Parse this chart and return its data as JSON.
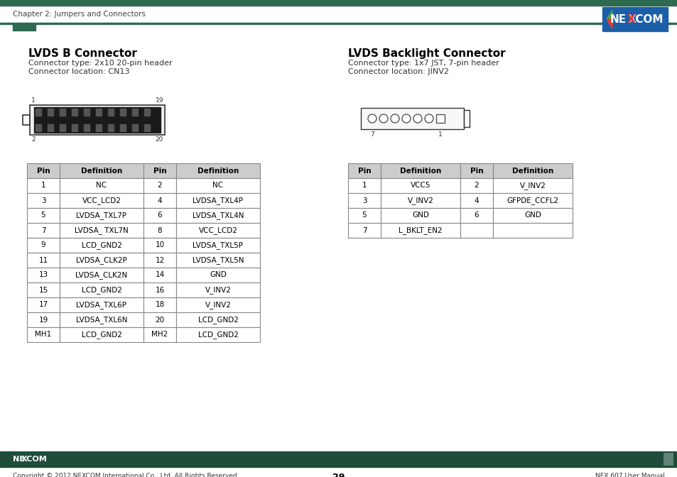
{
  "page_title": "Chapter 2: Jumpers and Connectors",
  "page_number": "29",
  "footer_left": "Copyright © 2012 NEXCOM International Co., Ltd. All Rights Reserved.",
  "footer_right": "NEX 607 User Manual",
  "bg_color": "#ffffff",
  "header_bar_color": "#2d6a4f",
  "footer_bar_color": "#1e4d3a",
  "lvds_b_title": "LVDS B Connector",
  "lvds_b_type": "Connector type: 2x10 20-pin header",
  "lvds_b_loc": "Connector location: CN13",
  "lvds_bl_title": "LVDS Backlight Connector",
  "lvds_bl_type": "Connector type: 1x7 JST, 7-pin header",
  "lvds_bl_loc": "Connector location: JINV2",
  "table1_headers": [
    "Pin",
    "Definition",
    "Pin",
    "Definition"
  ],
  "table1_rows": [
    [
      "1",
      "NC",
      "2",
      "NC"
    ],
    [
      "3",
      "VCC_LCD2",
      "4",
      "LVDSA_TXL4P"
    ],
    [
      "5",
      "LVDSA_TXL7P",
      "6",
      "LVDSA_TXL4N"
    ],
    [
      "7",
      "LVDSA_ TXL7N",
      "8",
      "VCC_LCD2"
    ],
    [
      "9",
      "LCD_GND2",
      "10",
      "LVDSA_TXL5P"
    ],
    [
      "11",
      "LVDSA_CLK2P",
      "12",
      "LVDSA_TXL5N"
    ],
    [
      "13",
      "LVDSA_CLK2N",
      "14",
      "GND"
    ],
    [
      "15",
      "LCD_GND2",
      "16",
      "V_INV2"
    ],
    [
      "17",
      "LVDSA_TXL6P",
      "18",
      "V_INV2"
    ],
    [
      "19",
      "LVDSA_TXL6N",
      "20",
      "LCD_GND2"
    ],
    [
      "MH1",
      "LCD_GND2",
      "MH2",
      "LCD_GND2"
    ]
  ],
  "table2_headers": [
    "Pin",
    "Definition",
    "Pin",
    "Definition"
  ],
  "table2_rows": [
    [
      "1",
      "VCC5",
      "2",
      "V_INV2"
    ],
    [
      "3",
      "V_INV2",
      "4",
      "GFPDE_CCFL2"
    ],
    [
      "5",
      "GND",
      "6",
      "GND"
    ],
    [
      "7",
      "L_BKLT_EN2",
      "",
      ""
    ]
  ],
  "table_header_bg": "#cccccc",
  "table_border_color": "#888888",
  "table_text_color": "#000000"
}
